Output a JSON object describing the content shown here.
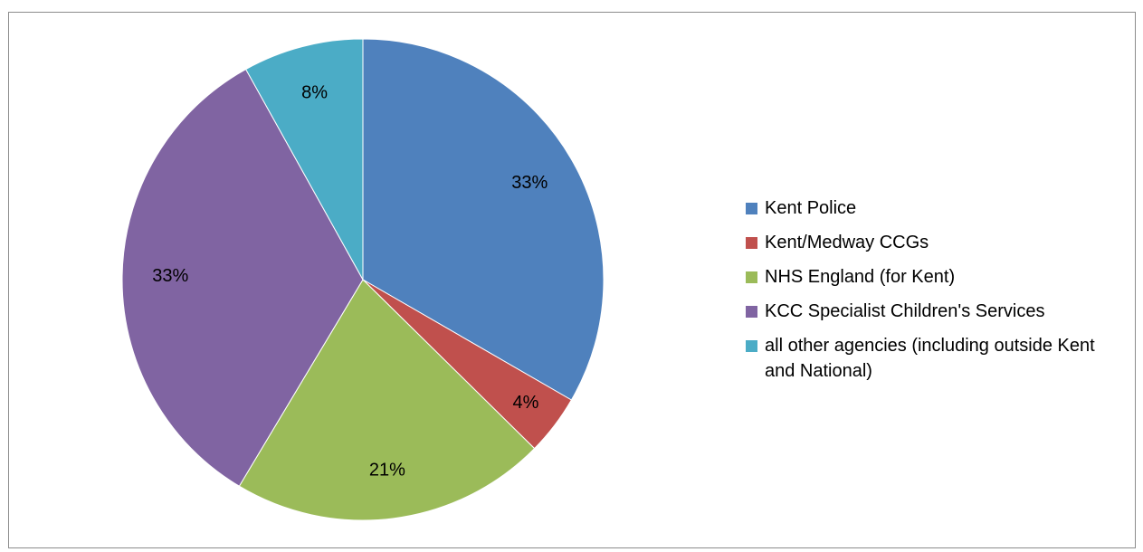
{
  "chart_data": {
    "type": "pie",
    "title": "",
    "slices": [
      {
        "label": "Kent Police",
        "value": 33,
        "display": "33%",
        "color": "#4f81bd"
      },
      {
        "label": "Kent/Medway CCGs",
        "value": 4,
        "display": "4%",
        "color": "#c0504d"
      },
      {
        "label": "NHS England (for Kent)",
        "value": 21,
        "display": "21%",
        "color": "#9bbb59"
      },
      {
        "label": "KCC Specialist Children's Services",
        "value": 33,
        "display": "33%",
        "color": "#8064a2"
      },
      {
        "label": "all other agencies (including outside Kent and National)",
        "value": 8,
        "display": "8%",
        "color": "#4bacc6"
      }
    ],
    "legend_position": "right",
    "slice_border_color": "#ffffff"
  }
}
